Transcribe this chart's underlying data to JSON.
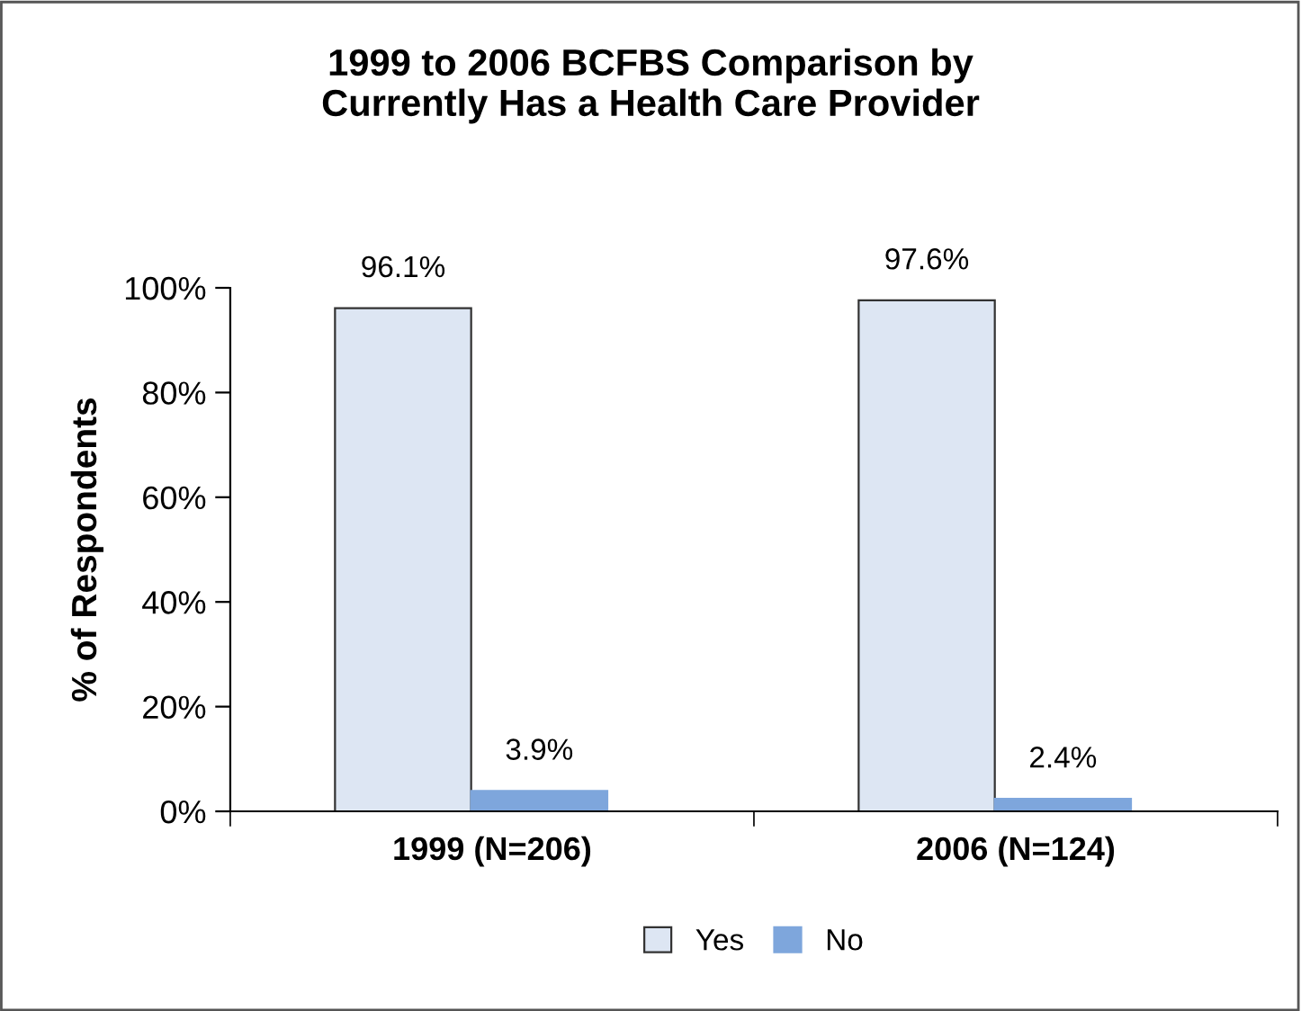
{
  "chart_data": {
    "type": "bar",
    "title": "1999 to 2006 BCFBS Comparison by\nCurrently Has a Health Care Provider",
    "ylabel": "% of Respondents",
    "categories": [
      "1999 (N=206)",
      "2006 (N=124)"
    ],
    "series": [
      {
        "name": "Yes",
        "color": "#dde6f3",
        "values": [
          96.1,
          97.6
        ],
        "value_labels": [
          "96.1%",
          "97.6%"
        ]
      },
      {
        "name": "No",
        "color": "#7ea6dc",
        "values": [
          3.9,
          2.4
        ],
        "value_labels": [
          "3.9%",
          "2.4%"
        ]
      }
    ],
    "ylim": [
      0,
      100
    ],
    "yticks": [
      {
        "value": 0,
        "label": "0%"
      },
      {
        "value": 20,
        "label": "20%"
      },
      {
        "value": 40,
        "label": "40%"
      },
      {
        "value": 60,
        "label": "60%"
      },
      {
        "value": 80,
        "label": "80%"
      },
      {
        "value": 100,
        "label": "100%"
      }
    ],
    "grid": false,
    "legend": "bottom"
  }
}
